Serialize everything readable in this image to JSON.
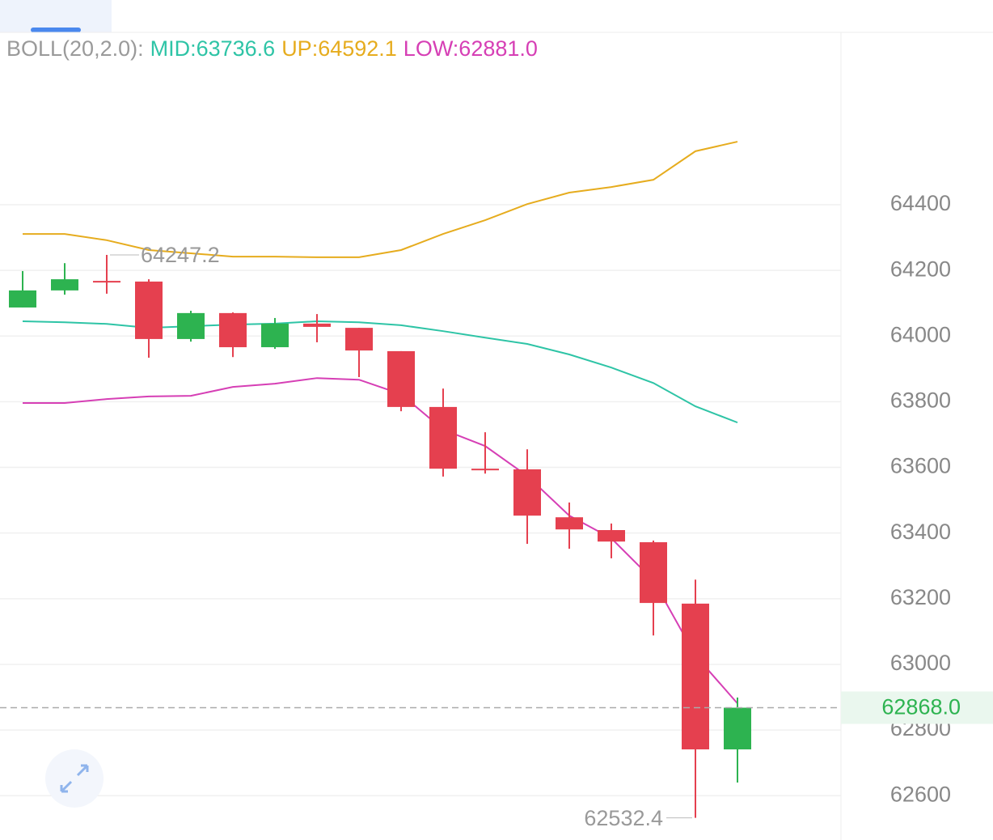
{
  "chart_data": {
    "type": "candlestick",
    "indicator": "BOLL(20,2.0):",
    "open": [
      64087,
      64139,
      64168,
      64166,
      63991,
      64070,
      63966,
      64038,
      64025,
      63954,
      63784,
      63596,
      63594,
      63448,
      63409,
      63372,
      63185,
      62741
    ],
    "high": [
      64198,
      64222,
      64247.2,
      64173,
      64077,
      64072,
      64055,
      64067,
      64025,
      63954,
      63840,
      63707,
      63655,
      63493,
      63429,
      63377,
      63258,
      62899
    ],
    "low": [
      64087,
      64126,
      64129,
      63934,
      63983,
      63936,
      63961,
      63981,
      63875,
      63771,
      63572,
      63581,
      63367,
      63352,
      63323,
      63088,
      62532.4,
      62640
    ],
    "close": [
      64139,
      64173,
      64165,
      63991,
      64070,
      63966,
      64038,
      64028,
      63956,
      63784,
      63596,
      63594,
      63453,
      63411,
      63374,
      63187,
      62741,
      62868.0
    ],
    "up_color": "#2db350",
    "down_color": "#e5404f",
    "series": [
      {
        "name": "MID:63736.6",
        "color": "#2ec4a6",
        "values": [
          64045,
          64042,
          64037,
          64025,
          64030,
          64035,
          64038,
          64045,
          64042,
          64033,
          64015,
          63995,
          63976,
          63944,
          63904,
          63857,
          63786,
          63736.6
        ]
      },
      {
        "name": "UP:64592.1",
        "color": "#e6ac1e",
        "values": [
          64311,
          64311,
          64292,
          64262,
          64252,
          64242,
          64242,
          64240,
          64240,
          64262,
          64311,
          64353,
          64402,
          64437,
          64454,
          64476,
          64563,
          64592.1
        ]
      },
      {
        "name": "LOW:62881.0",
        "color": "#d63fb5",
        "values": [
          63796,
          63796,
          63808,
          63816,
          63818,
          63845,
          63855,
          63872,
          63867,
          63823,
          63715,
          63665,
          63574,
          63453,
          63384,
          63256,
          63027,
          62881.0
        ]
      }
    ],
    "high_label": {
      "value": 64247.2,
      "label": "64247.2"
    },
    "low_label": {
      "value": 62532.4,
      "label": "62532.4"
    },
    "last_price": {
      "value": 62868.0,
      "label": "62868.0"
    },
    "ylim": [
      62465,
      64925
    ],
    "yticks": [
      62600,
      62800,
      63000,
      63200,
      63400,
      63600,
      63800,
      64000,
      64200,
      64400
    ],
    "grid": true
  }
}
